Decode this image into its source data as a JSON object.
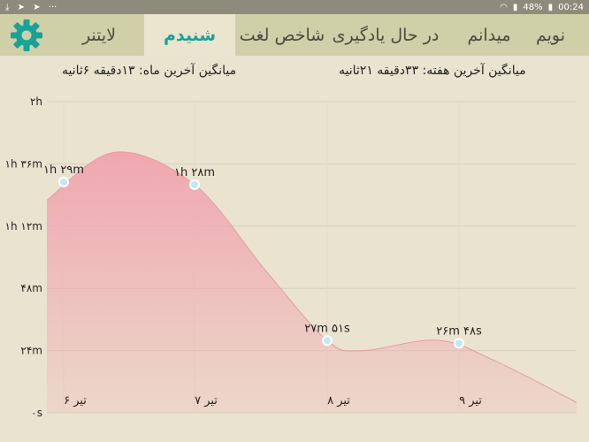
{
  "status_bar": {
    "left_icons": [
      "download-icon",
      "telegram-icon",
      "telegram-icon",
      "more-icon"
    ],
    "battery": "48%",
    "time": "00:24"
  },
  "tabs": [
    {
      "label": "لایتنر",
      "active": false
    },
    {
      "label": "شنیدم",
      "active": true
    },
    {
      "label": "شاخص لغت",
      "active": false
    },
    {
      "label": "در حال یادگیری",
      "active": false
    },
    {
      "label": "میدانم",
      "active": false
    },
    {
      "label": "نویم",
      "active": false
    }
  ],
  "averages": {
    "month": "میانگین آخرین ماه: ۱۳دقیقه  ۶ثانیه",
    "week": "میانگین آخرین هفته: ۳۳دقیقه  ۲۱ثانیه"
  },
  "colors": {
    "accent": "#1aa198",
    "tab_bar": "#cfd0a8",
    "background": "#eae3d0",
    "area_fill": "#f0a7b0"
  },
  "chart_data": {
    "type": "area",
    "x": [
      "۶ تیر",
      "۷ تیر",
      "۸ تیر",
      "۹ تیر"
    ],
    "values_minutes": [
      89,
      88,
      27.85,
      26.8
    ],
    "data_labels": [
      "۱h ۲۹m",
      "۱h ۲۸m",
      "۲۷m ۵۱s",
      "۲۶m ۴۸s"
    ],
    "y_ticks": [
      {
        "value": 0,
        "label": "۰s"
      },
      {
        "value": 24,
        "label": "۲۴m"
      },
      {
        "value": 48,
        "label": "۴۸m"
      },
      {
        "value": 72,
        "label": "۱h ۱۲m"
      },
      {
        "value": 96,
        "label": "۱h ۳۶m"
      },
      {
        "value": 120,
        "label": "۲h"
      }
    ],
    "ylim": [
      0,
      120
    ],
    "grid": true
  }
}
